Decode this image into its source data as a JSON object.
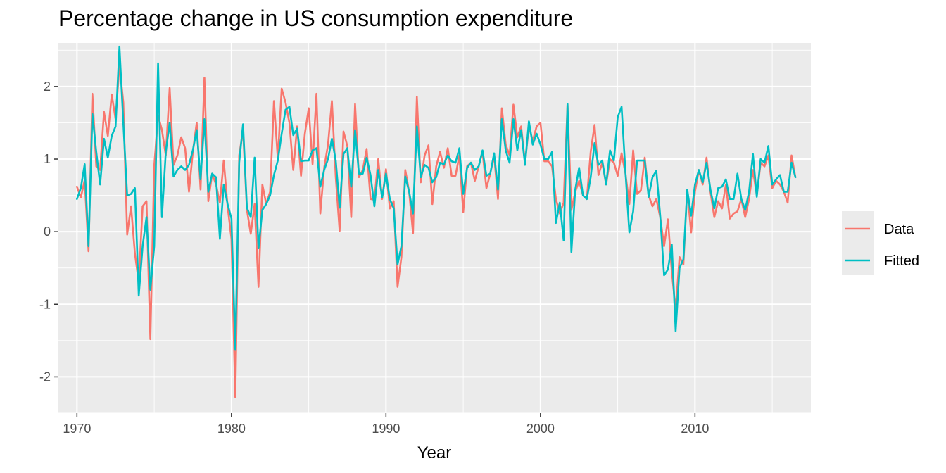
{
  "chart_data": {
    "type": "line",
    "title": "Percentage change in US consumption expenditure",
    "xlabel": "Year",
    "ylabel": "",
    "xlim": [
      1968.8,
      2017.5
    ],
    "ylim": [
      -2.5,
      2.6
    ],
    "x_ticks": [
      1970,
      1980,
      1990,
      2000,
      2010
    ],
    "x_tick_labels": [
      "1970",
      "1980",
      "1990",
      "2000",
      "2010"
    ],
    "y_ticks": [
      -2,
      -1,
      0,
      1,
      2
    ],
    "y_tick_labels": [
      "-2",
      "-1",
      "0",
      "1",
      "2"
    ],
    "grid": true,
    "legend_position": "right",
    "series": [
      {
        "name": "Data",
        "color": "#F8766D",
        "x": [
          1970.0,
          1970.25,
          1970.5,
          1970.75,
          1971.0,
          1971.25,
          1971.5,
          1971.75,
          1972.0,
          1972.25,
          1972.5,
          1972.75,
          1973.0,
          1973.25,
          1973.5,
          1973.75,
          1974.0,
          1974.25,
          1974.5,
          1974.75,
          1975.0,
          1975.25,
          1975.5,
          1975.75,
          1976.0,
          1976.25,
          1976.5,
          1976.75,
          1977.0,
          1977.25,
          1977.5,
          1977.75,
          1978.0,
          1978.25,
          1978.5,
          1978.75,
          1979.0,
          1979.25,
          1979.5,
          1979.75,
          1980.0,
          1980.25,
          1980.5,
          1980.75,
          1981.0,
          1981.25,
          1981.5,
          1981.75,
          1982.0,
          1982.25,
          1982.5,
          1982.75,
          1983.0,
          1983.25,
          1983.5,
          1983.75,
          1984.0,
          1984.25,
          1984.5,
          1984.75,
          1985.0,
          1985.25,
          1985.5,
          1985.75,
          1986.0,
          1986.25,
          1986.5,
          1986.75,
          1987.0,
          1987.25,
          1987.5,
          1987.75,
          1988.0,
          1988.25,
          1988.5,
          1988.75,
          1989.0,
          1989.25,
          1989.5,
          1989.75,
          1990.0,
          1990.25,
          1990.5,
          1990.75,
          1991.0,
          1991.25,
          1991.5,
          1991.75,
          1992.0,
          1992.25,
          1992.5,
          1992.75,
          1993.0,
          1993.25,
          1993.5,
          1993.75,
          1994.0,
          1994.25,
          1994.5,
          1994.75,
          1995.0,
          1995.25,
          1995.5,
          1995.75,
          1996.0,
          1996.25,
          1996.5,
          1996.75,
          1997.0,
          1997.25,
          1997.5,
          1997.75,
          1998.0,
          1998.25,
          1998.5,
          1998.75,
          1999.0,
          1999.25,
          1999.5,
          1999.75,
          2000.0,
          2000.25,
          2000.5,
          2000.75,
          2001.0,
          2001.25,
          2001.5,
          2001.75,
          2002.0,
          2002.25,
          2002.5,
          2002.75,
          2003.0,
          2003.25,
          2003.5,
          2003.75,
          2004.0,
          2004.25,
          2004.5,
          2004.75,
          2005.0,
          2005.25,
          2005.5,
          2005.75,
          2006.0,
          2006.25,
          2006.5,
          2006.75,
          2007.0,
          2007.25,
          2007.5,
          2007.75,
          2008.0,
          2008.25,
          2008.5,
          2008.75,
          2009.0,
          2009.25,
          2009.5,
          2009.75,
          2010.0,
          2010.25,
          2010.5,
          2010.75,
          2011.0,
          2011.25,
          2011.5,
          2011.75,
          2012.0,
          2012.25,
          2012.5,
          2012.75,
          2013.0,
          2013.25,
          2013.5,
          2013.75,
          2014.0,
          2014.25,
          2014.5,
          2014.75,
          2015.0,
          2015.25,
          2015.5,
          2015.75,
          2016.0,
          2016.25,
          2016.5
        ],
        "values": [
          0.62,
          0.47,
          0.71,
          -0.27,
          1.9,
          0.9,
          0.85,
          1.65,
          1.32,
          1.89,
          1.55,
          2.3,
          1.78,
          -0.04,
          0.35,
          -0.3,
          -0.7,
          0.35,
          0.42,
          -1.48,
          0.9,
          1.6,
          1.4,
          1.05,
          1.98,
          0.92,
          1.05,
          1.3,
          1.15,
          0.55,
          1.1,
          1.5,
          0.58,
          2.12,
          0.42,
          0.8,
          0.65,
          0.4,
          0.98,
          0.35,
          -0.1,
          -2.28,
          1.05,
          1.4,
          0.3,
          -0.03,
          0.38,
          -0.76,
          0.65,
          0.38,
          0.55,
          1.8,
          1.0,
          1.97,
          1.78,
          1.5,
          0.85,
          1.45,
          0.77,
          1.35,
          1.7,
          0.93,
          1.9,
          0.25,
          0.88,
          1.2,
          1.8,
          0.75,
          0.01,
          1.38,
          1.18,
          0.2,
          1.76,
          0.75,
          0.85,
          1.14,
          0.45,
          0.44,
          1.0,
          0.45,
          0.86,
          0.32,
          0.42,
          -0.76,
          -0.35,
          0.85,
          0.55,
          -0.02,
          1.86,
          0.68,
          1.05,
          1.19,
          0.38,
          0.9,
          1.1,
          0.88,
          1.15,
          0.77,
          0.77,
          1.05,
          0.27,
          0.9,
          0.95,
          0.7,
          0.9,
          1.1,
          0.6,
          0.8,
          1.05,
          0.45,
          1.7,
          1.2,
          1.05,
          1.75,
          1.3,
          1.45,
          0.95,
          1.45,
          1.25,
          1.45,
          1.5,
          0.97,
          0.97,
          0.9,
          0.45,
          0.25,
          0.4,
          1.75,
          0.3,
          0.55,
          0.7,
          0.5,
          0.45,
          1.1,
          1.47,
          0.78,
          0.95,
          0.65,
          1.0,
          0.95,
          0.77,
          1.08,
          0.8,
          0.38,
          1.12,
          0.52,
          0.57,
          1.02,
          0.5,
          0.35,
          0.45,
          0.2,
          -0.2,
          0.17,
          -0.55,
          -1.08,
          -0.35,
          -0.45,
          0.58,
          -0.01,
          0.55,
          0.85,
          0.65,
          1.02,
          0.55,
          0.2,
          0.42,
          0.32,
          0.65,
          0.18,
          0.25,
          0.28,
          0.45,
          0.2,
          0.45,
          0.85,
          0.5,
          0.95,
          0.9,
          1.05,
          0.6,
          0.7,
          0.65,
          0.55,
          0.4,
          1.05,
          0.75
        ]
      },
      {
        "name": "Fitted",
        "color": "#00BFC4",
        "x": [
          1970.0,
          1970.25,
          1970.5,
          1970.75,
          1971.0,
          1971.25,
          1971.5,
          1971.75,
          1972.0,
          1972.25,
          1972.5,
          1972.75,
          1973.0,
          1973.25,
          1973.5,
          1973.75,
          1974.0,
          1974.25,
          1974.5,
          1974.75,
          1975.0,
          1975.25,
          1975.5,
          1975.75,
          1976.0,
          1976.25,
          1976.5,
          1976.75,
          1977.0,
          1977.25,
          1977.5,
          1977.75,
          1978.0,
          1978.25,
          1978.5,
          1978.75,
          1979.0,
          1979.25,
          1979.5,
          1979.75,
          1980.0,
          1980.25,
          1980.5,
          1980.75,
          1981.0,
          1981.25,
          1981.5,
          1981.75,
          1982.0,
          1982.25,
          1982.5,
          1982.75,
          1983.0,
          1983.25,
          1983.5,
          1983.75,
          1984.0,
          1984.25,
          1984.5,
          1984.75,
          1985.0,
          1985.25,
          1985.5,
          1985.75,
          1986.0,
          1986.25,
          1986.5,
          1986.75,
          1987.0,
          1987.25,
          1987.5,
          1987.75,
          1988.0,
          1988.25,
          1988.5,
          1988.75,
          1989.0,
          1989.25,
          1989.5,
          1989.75,
          1990.0,
          1990.25,
          1990.5,
          1990.75,
          1991.0,
          1991.25,
          1991.5,
          1991.75,
          1992.0,
          1992.25,
          1992.5,
          1992.75,
          1993.0,
          1993.25,
          1993.5,
          1993.75,
          1994.0,
          1994.25,
          1994.5,
          1994.75,
          1995.0,
          1995.25,
          1995.5,
          1995.75,
          1996.0,
          1996.25,
          1996.5,
          1996.75,
          1997.0,
          1997.25,
          1997.5,
          1997.75,
          1998.0,
          1998.25,
          1998.5,
          1998.75,
          1999.0,
          1999.25,
          1999.5,
          1999.75,
          2000.0,
          2000.25,
          2000.5,
          2000.75,
          2001.0,
          2001.25,
          2001.5,
          2001.75,
          2002.0,
          2002.25,
          2002.5,
          2002.75,
          2003.0,
          2003.25,
          2003.5,
          2003.75,
          2004.0,
          2004.25,
          2004.5,
          2004.75,
          2005.0,
          2005.25,
          2005.5,
          2005.75,
          2006.0,
          2006.25,
          2006.5,
          2006.75,
          2007.0,
          2007.25,
          2007.5,
          2007.75,
          2008.0,
          2008.25,
          2008.5,
          2008.75,
          2009.0,
          2009.25,
          2009.5,
          2009.75,
          2010.0,
          2010.25,
          2010.5,
          2010.75,
          2011.0,
          2011.25,
          2011.5,
          2011.75,
          2012.0,
          2012.25,
          2012.5,
          2012.75,
          2013.0,
          2013.25,
          2013.5,
          2013.75,
          2014.0,
          2014.25,
          2014.5,
          2014.75,
          2015.0,
          2015.25,
          2015.5,
          2015.75,
          2016.0,
          2016.25,
          2016.5
        ],
        "values": [
          0.45,
          0.6,
          0.93,
          -0.2,
          1.62,
          1.1,
          0.65,
          1.28,
          1.02,
          1.32,
          1.45,
          2.55,
          1.5,
          0.5,
          0.52,
          0.6,
          -0.88,
          -0.2,
          0.2,
          -0.8,
          -0.2,
          2.32,
          0.2,
          1.1,
          1.5,
          0.76,
          0.85,
          0.9,
          0.85,
          0.92,
          1.12,
          1.4,
          0.72,
          1.55,
          0.55,
          0.8,
          0.75,
          -0.1,
          0.65,
          0.38,
          0.18,
          -1.62,
          0.95,
          1.48,
          0.33,
          0.2,
          1.02,
          -0.23,
          0.3,
          0.38,
          0.5,
          0.78,
          0.98,
          1.35,
          1.68,
          1.72,
          1.33,
          1.42,
          0.97,
          0.98,
          0.98,
          1.12,
          1.15,
          0.62,
          0.85,
          1.0,
          1.28,
          0.98,
          0.33,
          1.07,
          1.15,
          0.62,
          1.4,
          0.8,
          0.8,
          1.02,
          0.78,
          0.35,
          0.85,
          0.47,
          0.8,
          0.45,
          0.32,
          -0.45,
          -0.2,
          0.76,
          0.55,
          0.25,
          1.45,
          0.75,
          0.92,
          0.88,
          0.68,
          0.75,
          0.95,
          0.93,
          1.05,
          0.97,
          0.95,
          1.15,
          0.52,
          0.88,
          0.95,
          0.85,
          0.9,
          1.12,
          0.77,
          0.8,
          1.08,
          0.58,
          1.55,
          1.12,
          0.95,
          1.55,
          1.12,
          1.4,
          0.92,
          1.52,
          1.2,
          1.35,
          1.2,
          1.0,
          1.0,
          1.1,
          0.12,
          0.4,
          -0.12,
          1.76,
          -0.28,
          0.58,
          0.88,
          0.5,
          0.45,
          0.75,
          1.22,
          0.92,
          0.98,
          0.65,
          1.12,
          0.98,
          1.58,
          1.72,
          0.82,
          -0.01,
          0.28,
          0.98,
          0.98,
          0.98,
          0.48,
          0.75,
          0.84,
          0.22,
          -0.6,
          -0.52,
          -0.18,
          -1.37,
          -0.5,
          -0.38,
          0.58,
          0.22,
          0.65,
          0.85,
          0.68,
          0.95,
          0.58,
          0.32,
          0.6,
          0.62,
          0.72,
          0.45,
          0.45,
          0.8,
          0.45,
          0.3,
          0.55,
          1.07,
          0.48,
          1.0,
          0.95,
          1.18,
          0.65,
          0.72,
          0.78,
          0.55,
          0.55,
          0.95,
          0.75
        ]
      }
    ]
  }
}
